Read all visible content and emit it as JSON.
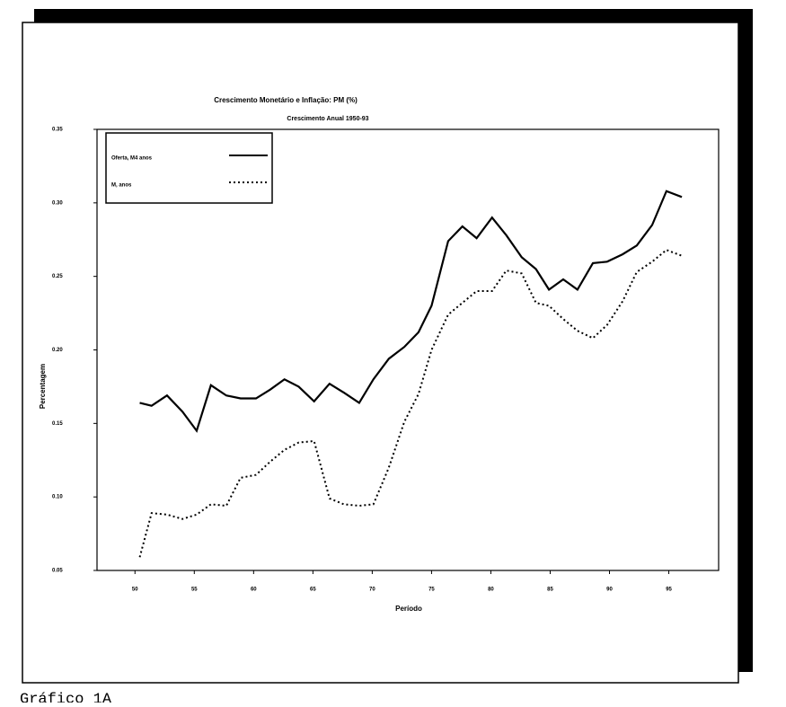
{
  "chart_data": {
    "type": "line",
    "title": "Crescimento Monetário e Inflação: PM (%)",
    "subtitle": "Crescimento Anual 1950-93",
    "xlabel": "Período",
    "ylabel": "Percentagem",
    "caption": "Gráfico 1A",
    "x": [
      50.4,
      51.4,
      52.7,
      54.0,
      55.2,
      56.4,
      57.7,
      58.9,
      60.2,
      61.4,
      62.6,
      63.8,
      65.1,
      66.4,
      67.6,
      68.9,
      70.1,
      71.4,
      72.7,
      73.9,
      75.0,
      76.4,
      77.6,
      78.8,
      80.1,
      81.3,
      82.6,
      83.8,
      84.9,
      86.1,
      87.3,
      88.6,
      89.8,
      91.1,
      92.3,
      93.6,
      94.8,
      96.1
    ],
    "series": [
      {
        "name": "Oferta, M4 anos",
        "color": "#000000",
        "style": "solid",
        "values": [
          0.164,
          0.162,
          0.169,
          0.158,
          0.145,
          0.176,
          0.169,
          0.167,
          0.167,
          0.173,
          0.18,
          0.175,
          0.165,
          0.177,
          0.171,
          0.164,
          0.18,
          0.194,
          0.202,
          0.212,
          0.23,
          0.274,
          0.284,
          0.276,
          0.29,
          0.278,
          0.263,
          0.255,
          0.241,
          0.248,
          0.241,
          0.259,
          0.26,
          0.265,
          0.271,
          0.285,
          0.308,
          0.304
        ]
      },
      {
        "name": "M, anos",
        "color": "#000000",
        "style": "dotted",
        "values": [
          0.059,
          0.089,
          0.088,
          0.085,
          0.088,
          0.095,
          0.094,
          0.113,
          0.115,
          0.124,
          0.132,
          0.137,
          0.138,
          0.099,
          0.095,
          0.094,
          0.095,
          0.12,
          0.151,
          0.17,
          0.2,
          0.224,
          0.232,
          0.24,
          0.24,
          0.254,
          0.252,
          0.232,
          0.23,
          0.221,
          0.213,
          0.208,
          0.217,
          0.233,
          0.253,
          0.26,
          0.268,
          0.264
        ]
      }
    ],
    "xlim": [
      46.8,
      99.2
    ],
    "ylim": [
      0.05,
      0.35
    ],
    "xticks": [
      50,
      55,
      60,
      65,
      70,
      75,
      80,
      85,
      90,
      95
    ],
    "yticks": [
      0.35,
      {
        "value": 0.3,
        "label": "0.30"
      },
      0.25,
      {
        "value": 0.2,
        "label": "0.20"
      },
      0.15,
      {
        "value": 0.1,
        "label": "0.10"
      },
      0.05
    ],
    "legend": "upper left"
  }
}
